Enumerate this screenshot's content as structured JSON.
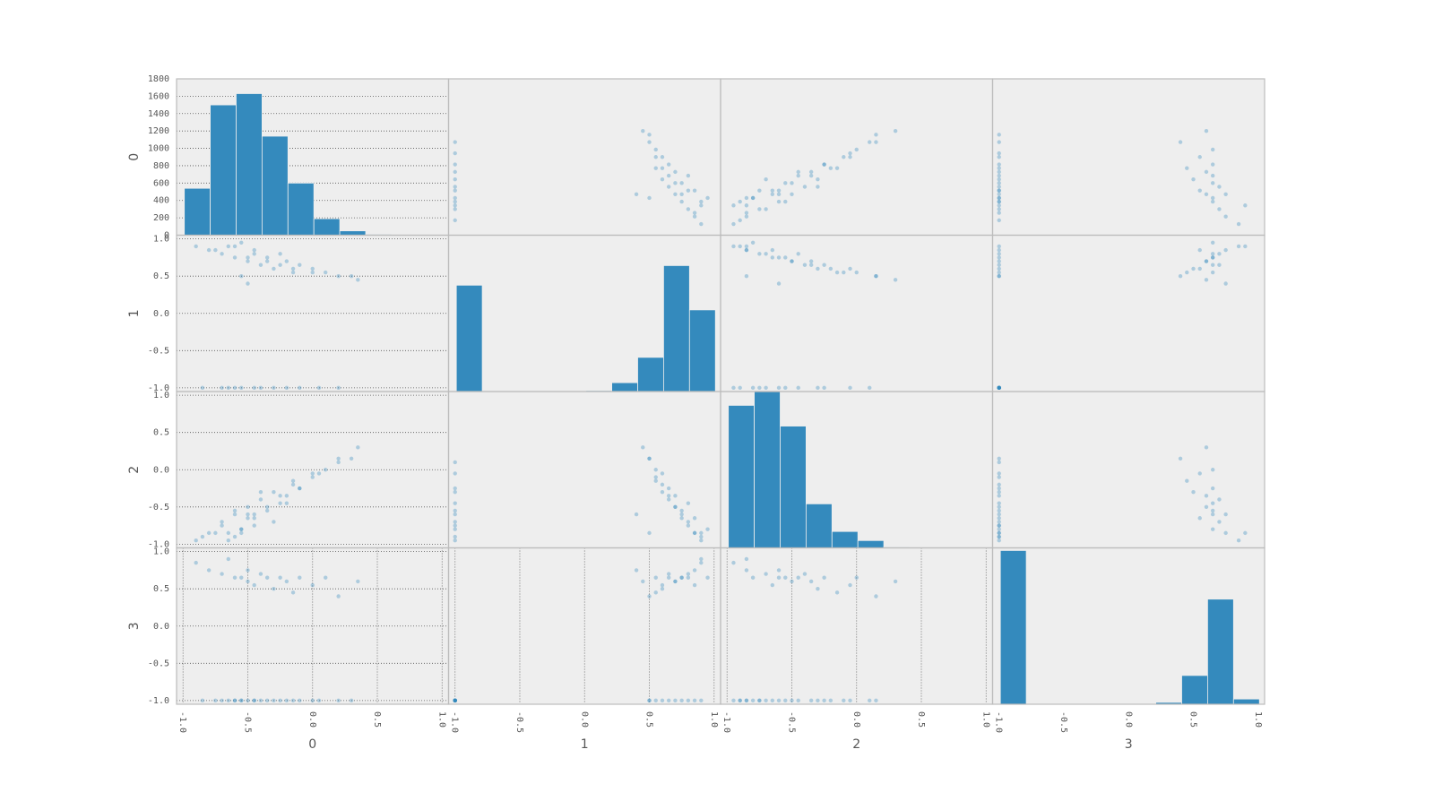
{
  "chart_data": {
    "type": "scatter_matrix",
    "variables": [
      "0",
      "1",
      "2",
      "3"
    ],
    "lim": [
      -1.05,
      1.05
    ],
    "ticks": [
      {
        "value": -1,
        "label": "-1.0"
      },
      -0.5,
      {
        "value": 0,
        "label": "0.0"
      },
      0.5,
      {
        "value": 1,
        "label": "1.0"
      }
    ],
    "count_ticks": [
      0,
      200,
      400,
      600,
      800,
      1000,
      1200,
      1400,
      1600,
      1800
    ],
    "color": "#348abd",
    "grid": true,
    "histograms": [
      {
        "bins": [
          -0.99,
          -0.79,
          -0.59,
          -0.39,
          -0.19,
          0.01,
          0.21,
          0.41,
          0.61,
          0.81,
          1.01
        ],
        "counts": [
          540,
          1500,
          1630,
          1140,
          600,
          190,
          50,
          10,
          2,
          1
        ],
        "ylim": [
          0,
          1800
        ]
      },
      {
        "bins": [
          -0.99,
          -0.79,
          -0.59,
          -0.39,
          -0.19,
          0.01,
          0.21,
          0.41,
          0.61,
          0.81,
          1.01
        ],
        "counts": [
          1680,
          0,
          0,
          0,
          0,
          15,
          140,
          540,
          1990,
          1290
        ],
        "ylim": [
          0,
          2470
        ]
      },
      {
        "bins": [
          -0.99,
          -0.79,
          -0.59,
          -0.39,
          -0.19,
          0.01,
          0.21,
          0.41,
          0.61,
          0.81,
          1.01
        ],
        "counts": [
          1650,
          1810,
          1410,
          510,
          190,
          85,
          10,
          0,
          0,
          3
        ],
        "ylim": [
          0,
          1810
        ]
      },
      {
        "bins": [
          -0.99,
          -0.79,
          -0.59,
          -0.39,
          -0.19,
          0.01,
          0.21,
          0.41,
          0.61,
          0.81,
          1.01
        ],
        "counts": [
          2940,
          0,
          0,
          0,
          0,
          15,
          35,
          550,
          2010,
          100
        ],
        "ylim": [
          0,
          2990
        ]
      }
    ],
    "rows": [
      [
        -0.85,
        -1,
        -0.9,
        -1
      ],
      [
        -0.7,
        -1,
        -0.75,
        -1
      ],
      [
        -0.6,
        -1,
        -0.55,
        -1
      ],
      [
        -0.55,
        -1,
        -0.8,
        -1
      ],
      [
        -0.45,
        -1,
        -0.6,
        -1
      ],
      [
        -0.4,
        -1,
        -0.3,
        -1
      ],
      [
        -0.3,
        -1,
        -0.7,
        -1
      ],
      [
        -0.2,
        -1,
        -0.45,
        -1
      ],
      [
        -0.1,
        -1,
        -0.25,
        -1
      ],
      [
        0.05,
        -1,
        -0.05,
        -1
      ],
      [
        0.2,
        -1,
        0.1,
        -1
      ],
      [
        -0.65,
        -1,
        -0.95,
        -1
      ],
      [
        -0.75,
        0.85,
        -0.85,
        -1
      ],
      [
        -0.5,
        0.75,
        -0.65,
        -1
      ],
      [
        -0.35,
        0.7,
        -0.5,
        -1
      ],
      [
        -0.6,
        0.9,
        -0.9,
        -1
      ],
      [
        -0.25,
        0.65,
        -0.35,
        -1
      ],
      [
        -0.45,
        0.8,
        -0.75,
        -1
      ],
      [
        -0.15,
        0.6,
        -0.2,
        -1
      ],
      [
        0.0,
        0.55,
        -0.1,
        -1
      ],
      [
        -0.55,
        0.5,
        -0.85,
        -1
      ],
      [
        0.3,
        0.5,
        0.15,
        -1
      ],
      [
        -0.9,
        0.9,
        -0.95,
        0.85
      ],
      [
        -0.8,
        0.85,
        -0.85,
        0.75
      ],
      [
        -0.7,
        0.8,
        -0.7,
        0.7
      ],
      [
        -0.6,
        0.75,
        -0.6,
        0.65
      ],
      [
        -0.55,
        0.95,
        -0.8,
        0.65
      ],
      [
        -0.5,
        0.7,
        -0.5,
        0.6
      ],
      [
        -0.45,
        0.85,
        -0.65,
        0.55
      ],
      [
        -0.4,
        0.65,
        -0.4,
        0.7
      ],
      [
        -0.35,
        0.75,
        -0.55,
        0.65
      ],
      [
        -0.3,
        0.6,
        -0.3,
        0.5
      ],
      [
        -0.25,
        0.8,
        -0.45,
        0.65
      ],
      [
        -0.2,
        0.7,
        -0.35,
        0.6
      ],
      [
        -0.15,
        0.55,
        -0.15,
        0.45
      ],
      [
        -0.1,
        0.65,
        -0.25,
        0.65
      ],
      [
        0.0,
        0.6,
        -0.05,
        0.55
      ],
      [
        0.1,
        0.55,
        0.0,
        0.65
      ],
      [
        0.2,
        0.5,
        0.15,
        0.4
      ],
      [
        -0.65,
        0.9,
        -0.85,
        0.9
      ],
      [
        -0.5,
        0.4,
        -0.6,
        0.75
      ],
      [
        0.35,
        0.45,
        0.3,
        0.6
      ]
    ]
  }
}
